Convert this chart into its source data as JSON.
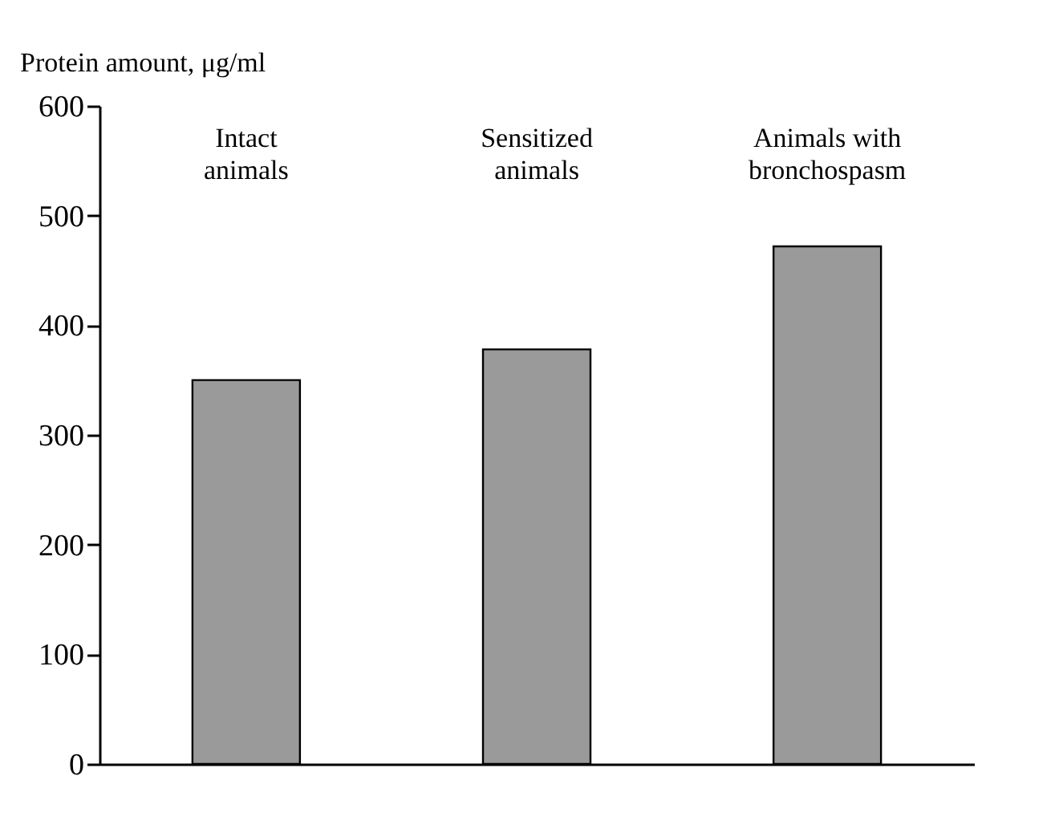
{
  "chart_data": {
    "type": "bar",
    "ylabel": "Protein amount, μg/ml",
    "categories": [
      "Intact animals",
      "Sensitized animals",
      "Animals with bronchospasm"
    ],
    "values": [
      350,
      378,
      472
    ],
    "color": "#9a9a9a",
    "ylim": [
      0,
      600
    ],
    "yticks": [
      0,
      100,
      200,
      300,
      400,
      500,
      600
    ],
    "grid": false
  }
}
